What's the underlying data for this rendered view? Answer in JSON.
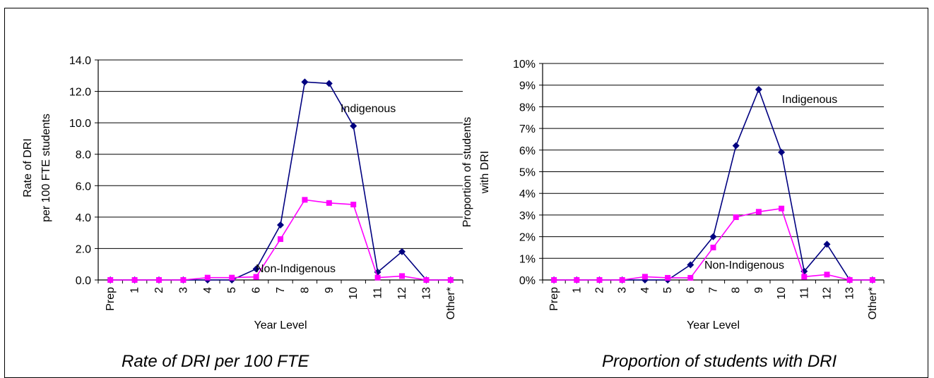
{
  "charts": [
    {
      "caption": "Rate of DRI per 100 FTE",
      "chart_data": {
        "type": "line",
        "xlabel": "Year Level",
        "ylabel_lines": [
          "Rate of DRI",
          "per 100 FTE  students"
        ],
        "categories": [
          "Prep",
          "1",
          "2",
          "3",
          "4",
          "5",
          "6",
          "7",
          "8",
          "9",
          "10",
          "11",
          "12",
          "13",
          "Other*"
        ],
        "ylim": [
          0,
          14
        ],
        "yticks": [
          0,
          2,
          4,
          6,
          8,
          10,
          12,
          14
        ],
        "ytick_labels": [
          "0.0",
          "2.0",
          "4.0",
          "6.0",
          "8.0",
          "10.0",
          "12.0",
          "14.0"
        ],
        "grid": true,
        "series": [
          {
            "name": "Indigenous",
            "color": "#000080",
            "marker": "diamond",
            "values": [
              0,
              0,
              0,
              0,
              0,
              0,
              0.7,
              3.5,
              12.6,
              12.5,
              9.8,
              0.5,
              1.8,
              0,
              0
            ]
          },
          {
            "name": "Non-Indigenous",
            "color": "#FF00FF",
            "marker": "square",
            "values": [
              0,
              0,
              0,
              0,
              0.15,
              0.15,
              0.2,
              2.6,
              5.1,
              4.9,
              4.8,
              0.15,
              0.25,
              0,
              0
            ]
          }
        ]
      }
    },
    {
      "caption": "Proportion of students with DRI",
      "chart_data": {
        "type": "line",
        "xlabel": "Year Level",
        "ylabel_lines": [
          "Proportion of students",
          "with DRI"
        ],
        "categories": [
          "Prep",
          "1",
          "2",
          "3",
          "4",
          "5",
          "6",
          "7",
          "8",
          "9",
          "10",
          "11",
          "12",
          "13",
          "Other*"
        ],
        "ylim": [
          0,
          10
        ],
        "yticks": [
          0,
          1,
          2,
          3,
          4,
          5,
          6,
          7,
          8,
          9,
          10
        ],
        "ytick_labels": [
          "0%",
          "1%",
          "2%",
          "3%",
          "4%",
          "5%",
          "6%",
          "7%",
          "8%",
          "9%",
          "10%"
        ],
        "grid": true,
        "series": [
          {
            "name": "Indigenous",
            "color": "#000080",
            "marker": "diamond",
            "values": [
              0,
              0,
              0,
              0,
              0,
              0,
              0.7,
              2.0,
              6.2,
              8.8,
              5.9,
              0.4,
              1.65,
              0,
              0
            ]
          },
          {
            "name": "Non-Indigenous",
            "color": "#FF00FF",
            "marker": "square",
            "values": [
              0,
              0,
              0,
              0,
              0.15,
              0.1,
              0.1,
              1.5,
              2.9,
              3.15,
              3.3,
              0.15,
              0.25,
              0,
              0
            ]
          }
        ]
      }
    }
  ]
}
